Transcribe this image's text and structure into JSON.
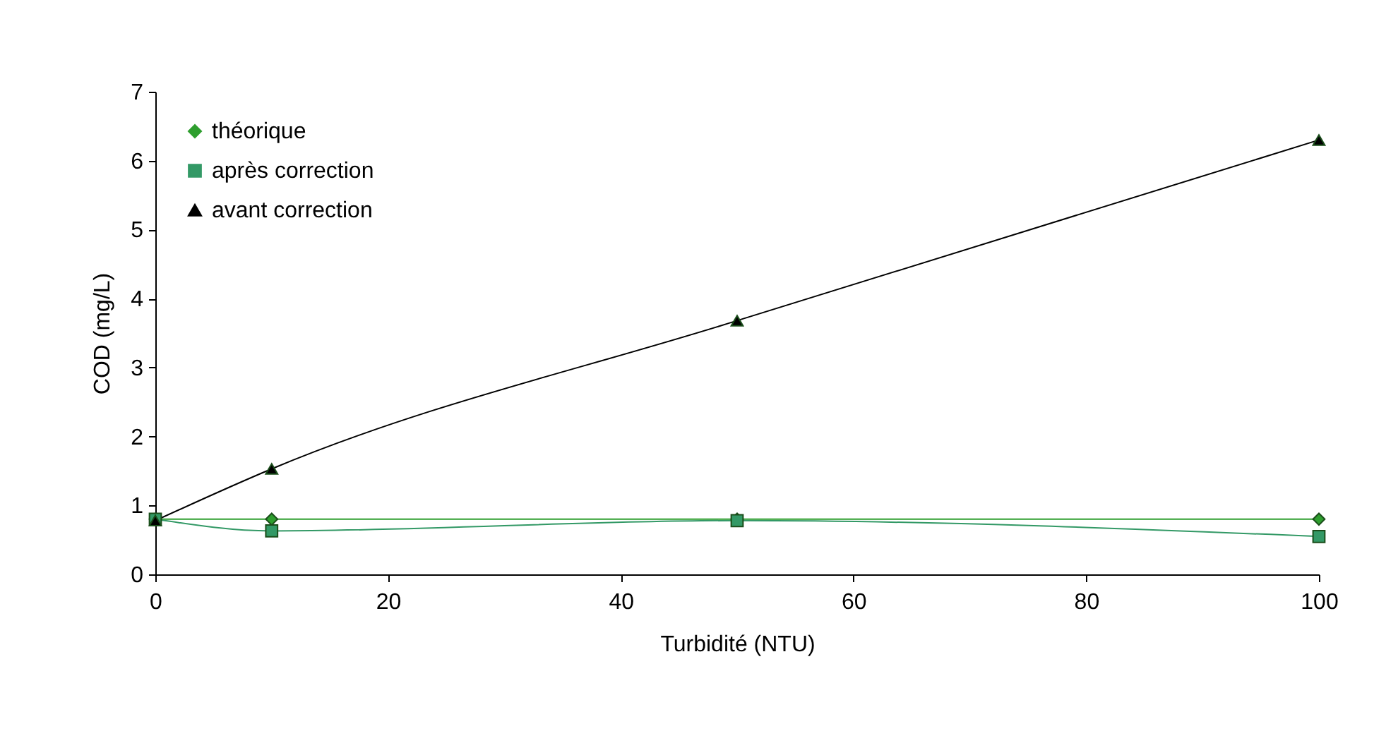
{
  "chart_data": {
    "type": "line",
    "xlabel": "Turbidité (NTU)",
    "ylabel": "COD (mg/L)",
    "x": [
      0,
      10,
      50,
      100
    ],
    "xlim": [
      0,
      100
    ],
    "xticks": [
      0,
      20,
      40,
      60,
      80,
      100
    ],
    "ylim": [
      0,
      7
    ],
    "yticks": [
      0,
      1,
      2,
      3,
      4,
      5,
      6,
      7
    ],
    "grid": false,
    "legend": "top left",
    "series": [
      {
        "name": "théorique",
        "color": "#2e9e2e",
        "marker": "diamond",
        "values": [
          0.8,
          0.8,
          0.8,
          0.8
        ]
      },
      {
        "name": "après correction",
        "color": "#339966",
        "marker": "square",
        "values": [
          0.8,
          0.63,
          0.78,
          0.55
        ]
      },
      {
        "name": "avant correction",
        "color": "#000000",
        "marker": "triangle",
        "values": [
          0.78,
          1.53,
          3.68,
          6.3
        ]
      }
    ]
  }
}
